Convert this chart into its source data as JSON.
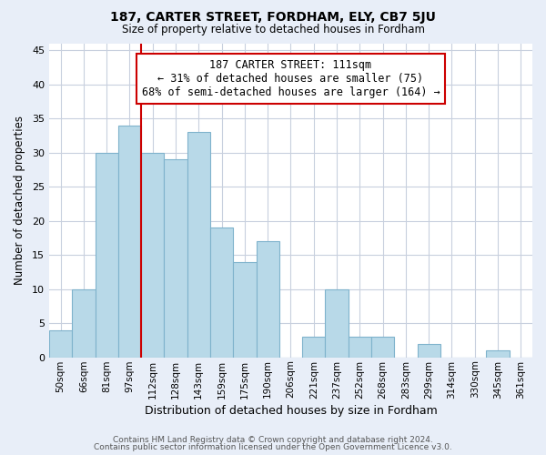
{
  "title": "187, CARTER STREET, FORDHAM, ELY, CB7 5JU",
  "subtitle": "Size of property relative to detached houses in Fordham",
  "xlabel": "Distribution of detached houses by size in Fordham",
  "ylabel": "Number of detached properties",
  "bar_labels": [
    "50sqm",
    "66sqm",
    "81sqm",
    "97sqm",
    "112sqm",
    "128sqm",
    "143sqm",
    "159sqm",
    "175sqm",
    "190sqm",
    "206sqm",
    "221sqm",
    "237sqm",
    "252sqm",
    "268sqm",
    "283sqm",
    "299sqm",
    "314sqm",
    "330sqm",
    "345sqm",
    "361sqm"
  ],
  "bar_values": [
    4,
    10,
    30,
    34,
    30,
    29,
    33,
    19,
    14,
    17,
    0,
    3,
    10,
    3,
    3,
    0,
    2,
    0,
    0,
    1,
    0
  ],
  "bar_color": "#b8d9e8",
  "bar_edge_color": "#7fb3cc",
  "vline_color": "#cc0000",
  "annotation_title": "187 CARTER STREET: 111sqm",
  "annotation_line1": "← 31% of detached houses are smaller (75)",
  "annotation_line2": "68% of semi-detached houses are larger (164) →",
  "ylim": [
    0,
    46
  ],
  "yticks": [
    0,
    5,
    10,
    15,
    20,
    25,
    30,
    35,
    40,
    45
  ],
  "footer1": "Contains HM Land Registry data © Crown copyright and database right 2024.",
  "footer2": "Contains public sector information licensed under the Open Government Licence v3.0.",
  "bg_color": "#e8eef8",
  "plot_bg_color": "#ffffff",
  "grid_color": "#c8d0de"
}
